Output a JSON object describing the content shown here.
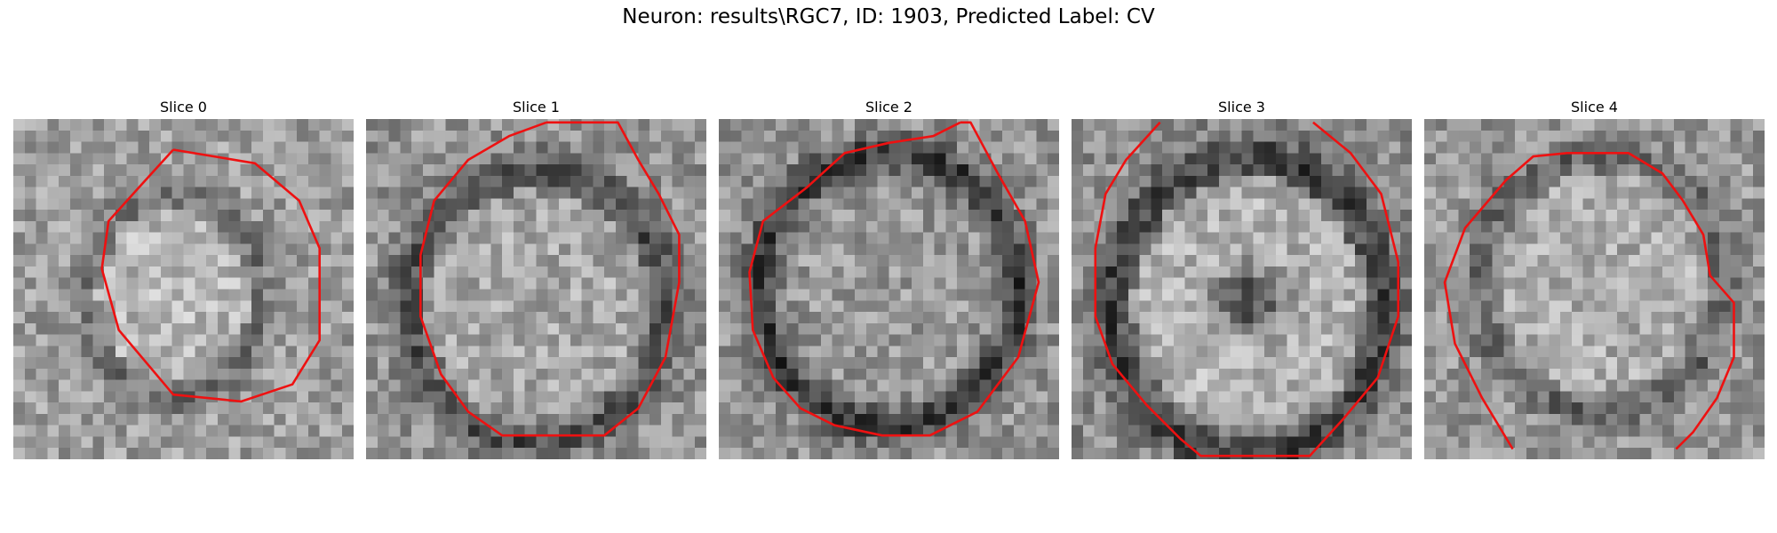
{
  "figure": {
    "title": "Neuron: results\\RGC7, ID: 1903, Predicted Label: CV"
  },
  "panels": [
    {
      "title": "Slice 0"
    },
    {
      "title": "Slice 1"
    },
    {
      "title": "Slice 2"
    },
    {
      "title": "Slice 3"
    },
    {
      "title": "Slice 4"
    }
  ],
  "colors": {
    "outline": "#ee1111",
    "background": "#ffffff"
  },
  "grid": {
    "pixels_per_side": 30,
    "colormap": "gray"
  }
}
